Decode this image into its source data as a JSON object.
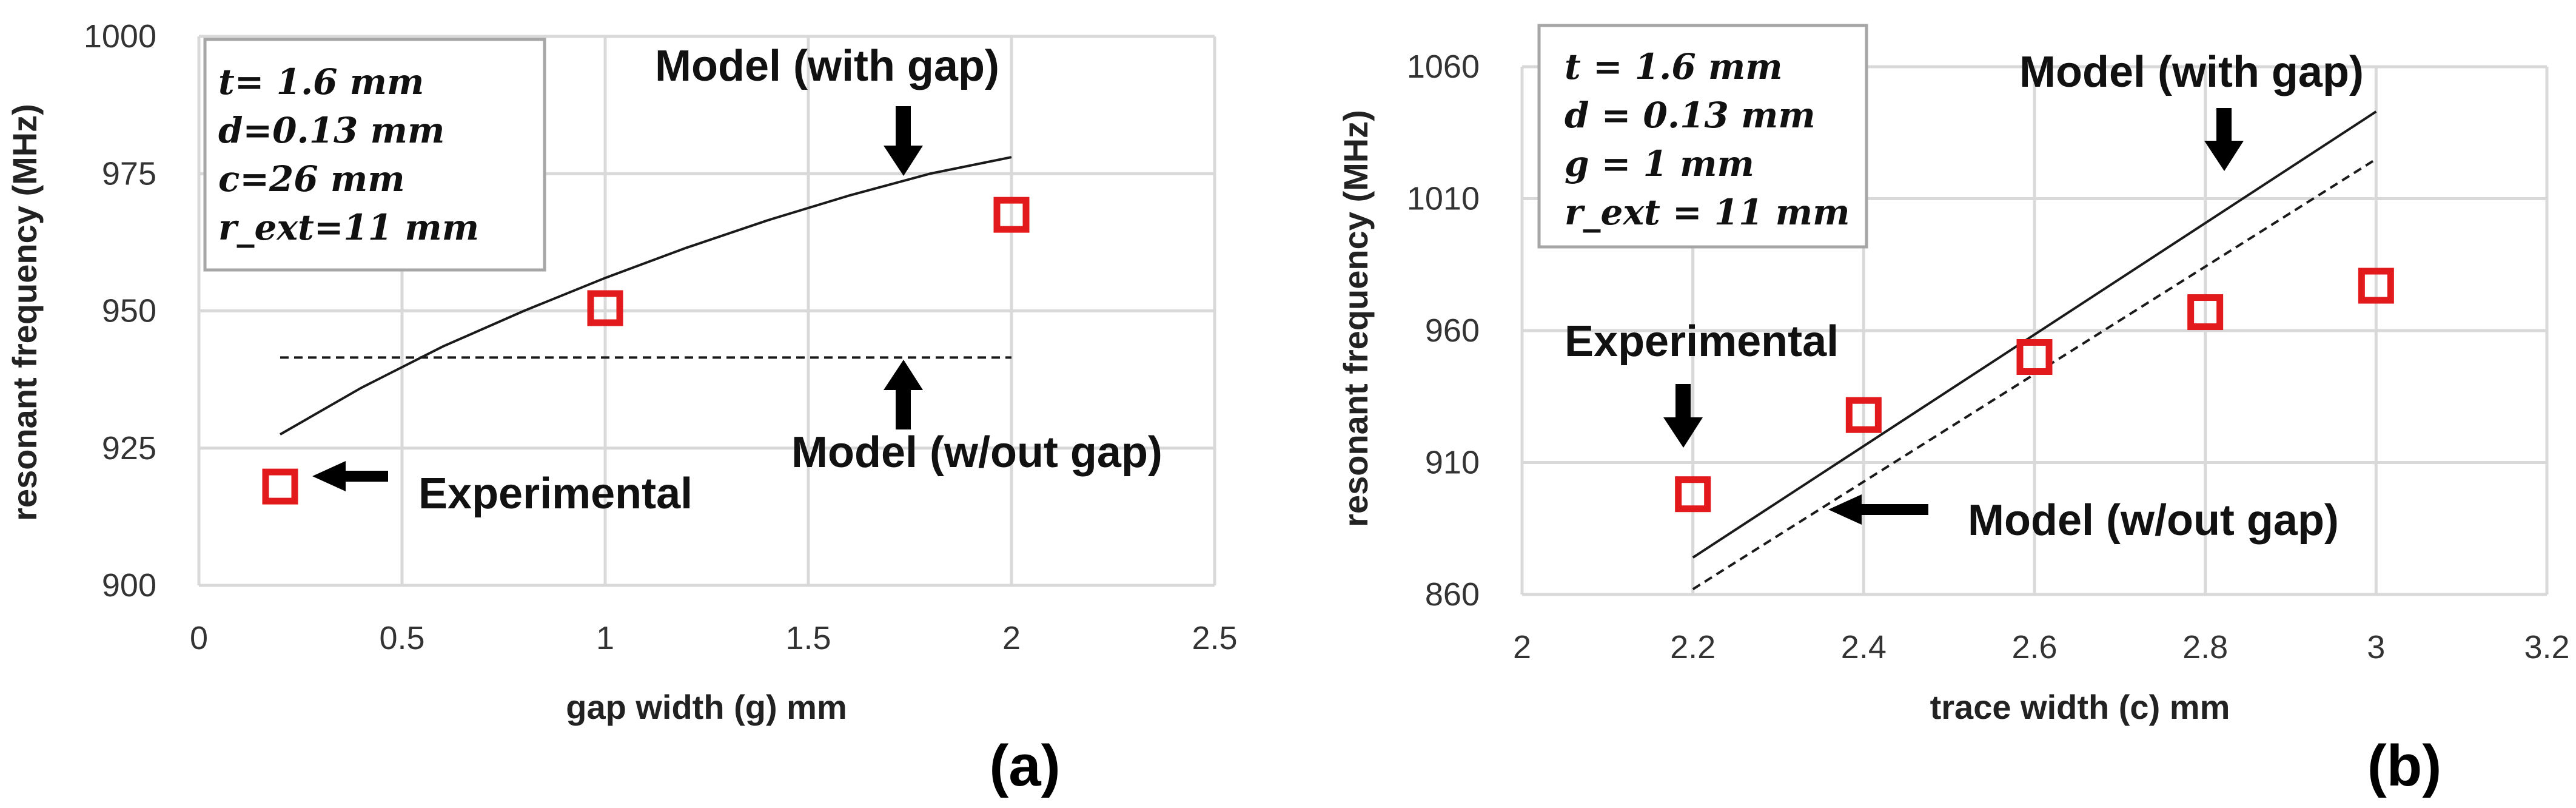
{
  "chart_data": [
    {
      "type": "line",
      "panel_label": "(a)",
      "xlabel": "gap width (g) mm",
      "ylabel": "resonant frequency (MHz)",
      "xlim": [
        0,
        2.5
      ],
      "ylim": [
        900,
        1000
      ],
      "xticks": [
        "0",
        "0.5",
        "1",
        "1.5",
        "2",
        "2.5"
      ],
      "yticks": [
        "900",
        "925",
        "950",
        "975",
        "1000"
      ],
      "grid": true,
      "params": [
        "t= 1.6 mm",
        "d=0.13 mm",
        "c=26 mm",
        "r_ext=11 mm"
      ],
      "series": [
        {
          "name": "Model (with gap)",
          "style": "solid",
          "x": [
            0.2,
            0.4,
            0.6,
            0.8,
            1.0,
            1.2,
            1.4,
            1.6,
            1.8,
            2.0
          ],
          "y": [
            927.5,
            936.0,
            943.5,
            950.0,
            956.0,
            961.5,
            966.5,
            971.0,
            975.0,
            978.0
          ]
        },
        {
          "name": "Model (w/out gap)",
          "style": "dashed",
          "x": [
            0.2,
            2.0
          ],
          "y": [
            941.5,
            941.5
          ]
        },
        {
          "name": "Experimental",
          "style": "markers",
          "x": [
            0.2,
            1.0,
            2.0
          ],
          "y": [
            918,
            950.5,
            967.5
          ]
        }
      ],
      "annotations": [
        "Model (with gap)",
        "Model (w/out gap)",
        "Experimental"
      ]
    },
    {
      "type": "line",
      "panel_label": "(b)",
      "xlabel": "trace width (c) mm",
      "ylabel": "resonant frequency (MHz)",
      "xlim": [
        2,
        3.2
      ],
      "ylim": [
        860,
        1060
      ],
      "xticks": [
        "2",
        "2.2",
        "2.4",
        "2.6",
        "2.8",
        "3",
        "3.2"
      ],
      "yticks": [
        "860",
        "910",
        "960",
        "1010",
        "1060"
      ],
      "grid": true,
      "params": [
        "t =  1.6 mm",
        "d = 0.13 mm",
        "g = 1 mm",
        "r_ext = 11 mm"
      ],
      "series": [
        {
          "name": "Model (with gap)",
          "style": "solid",
          "x": [
            2.2,
            3.0
          ],
          "y": [
            874,
            1043
          ]
        },
        {
          "name": "Model (w/out gap)",
          "style": "dashed",
          "x": [
            2.2,
            3.0
          ],
          "y": [
            862,
            1025
          ]
        },
        {
          "name": "Experimental",
          "style": "markers",
          "x": [
            2.2,
            2.4,
            2.6,
            2.8,
            3.0
          ],
          "y": [
            898,
            928,
            950,
            967,
            977
          ]
        }
      ],
      "annotations": [
        "Model (with gap)",
        "Model (w/out gap)",
        "Experimental"
      ]
    }
  ]
}
